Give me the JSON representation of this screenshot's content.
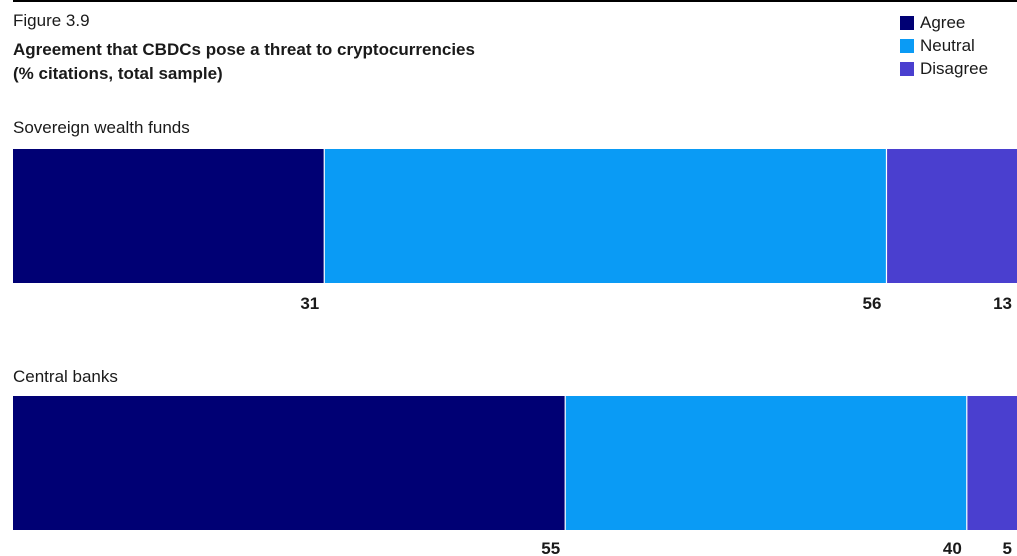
{
  "figure": {
    "label": "Figure 3.9",
    "title_line1": "Agreement that CBDCs pose a threat to cryptocurrencies",
    "title_line2": "(% citations, total sample)"
  },
  "legend": [
    {
      "name": "Agree",
      "color": "#000074"
    },
    {
      "name": "Neutral",
      "color": "#0a9bf5"
    },
    {
      "name": "Disagree",
      "color": "#4a3fcf"
    }
  ],
  "chart_data": {
    "type": "bar",
    "orientation": "horizontal",
    "stacked": true,
    "categories": [
      "Sovereign wealth funds",
      "Central banks"
    ],
    "series": [
      {
        "name": "Agree",
        "values": [
          31,
          55
        ],
        "color": "#000074"
      },
      {
        "name": "Neutral",
        "values": [
          56,
          40
        ],
        "color": "#0a9bf5"
      },
      {
        "name": "Disagree",
        "values": [
          13,
          5
        ],
        "color": "#4a3fcf"
      }
    ],
    "title": "Agreement that CBDCs pose a threat to cryptocurrencies",
    "subtitle": "(% citations, total sample)",
    "xlim": [
      0,
      100
    ],
    "grid": false,
    "legend_position": "top-right"
  }
}
